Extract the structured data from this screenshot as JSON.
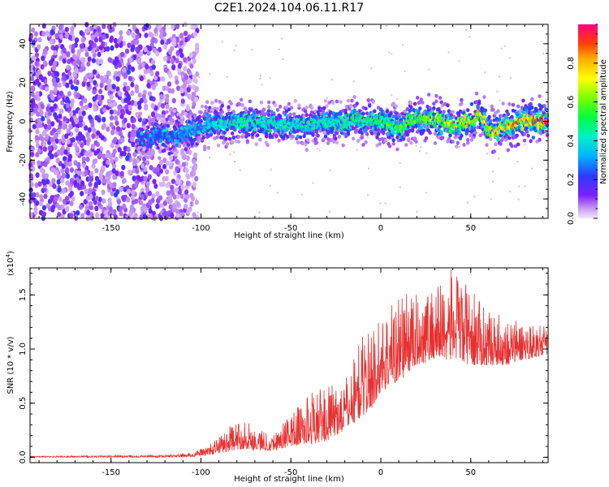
{
  "title": "C2E1.2024.104.06.11.R17",
  "chart_data": [
    {
      "type": "heatmap",
      "xlabel": "Height of straight line (km)",
      "ylabel": "Frequency (Hz)",
      "xlim": [
        -195,
        93
      ],
      "ylim": [
        -50,
        50
      ],
      "x_ticks": [
        -150,
        -100,
        -50,
        0,
        50
      ],
      "y_ticks": [
        -40,
        -20,
        0,
        20,
        40
      ],
      "colorbar": {
        "label": "Normalized spectral amplitude",
        "range": [
          0,
          1
        ],
        "ticks": [
          "0.0",
          "0.2",
          "0.4",
          "0.6",
          "0.8"
        ]
      },
      "description_points": {
        "noise_region_x": [
          -195,
          -110
        ],
        "signal_center_freq_hz": [
          [
            -130,
            -8
          ],
          [
            -110,
            -7
          ],
          [
            -100,
            -3
          ],
          [
            -80,
            0
          ],
          [
            -60,
            -1
          ],
          [
            -40,
            -2
          ],
          [
            -20,
            -1
          ],
          [
            -10,
            1
          ],
          [
            0,
            0
          ],
          [
            10,
            -3
          ],
          [
            20,
            2
          ],
          [
            30,
            1
          ],
          [
            40,
            -2
          ],
          [
            50,
            0
          ],
          [
            55,
            3
          ],
          [
            60,
            -3
          ],
          [
            65,
            -5
          ],
          [
            70,
            -2
          ],
          [
            80,
            0
          ],
          [
            90,
            0
          ]
        ],
        "signal_peak_amplitude": [
          [
            -130,
            0.25
          ],
          [
            -100,
            0.35
          ],
          [
            -80,
            0.5
          ],
          [
            -40,
            0.45
          ],
          [
            0,
            0.55
          ],
          [
            30,
            0.7
          ],
          [
            50,
            0.8
          ],
          [
            70,
            0.85
          ],
          [
            90,
            0.95
          ]
        ]
      }
    },
    {
      "type": "line",
      "xlabel": "Height of straight line (km)",
      "ylabel": "SNR (10 * v/v)",
      "y_multiplier": "(x10",
      "y_multiplier_exp": "4",
      "y_multiplier_close": ")",
      "xlim": [
        -195,
        93
      ],
      "ylim": [
        -0.05,
        1.75
      ],
      "x_ticks": [
        -150,
        -100,
        -50,
        0,
        50
      ],
      "y_ticks": [
        0.0,
        0.5,
        1.0,
        1.5
      ],
      "y_tick_labels": [
        "0.0",
        "0.5",
        "1.0",
        "1.5"
      ],
      "color": "#e83030",
      "envelope": [
        [
          -195,
          0.0,
          0.01
        ],
        [
          -120,
          0.0,
          0.02
        ],
        [
          -105,
          0.005,
          0.04
        ],
        [
          -95,
          0.02,
          0.12
        ],
        [
          -85,
          0.05,
          0.28
        ],
        [
          -75,
          0.08,
          0.35
        ],
        [
          -70,
          0.06,
          0.28
        ],
        [
          -60,
          0.06,
          0.22
        ],
        [
          -50,
          0.1,
          0.4
        ],
        [
          -40,
          0.12,
          0.6
        ],
        [
          -30,
          0.15,
          0.65
        ],
        [
          -20,
          0.25,
          0.7
        ],
        [
          -12,
          0.35,
          1.1
        ],
        [
          -5,
          0.45,
          1.2
        ],
        [
          0,
          0.6,
          1.3
        ],
        [
          10,
          0.7,
          1.55
        ],
        [
          20,
          0.85,
          1.5
        ],
        [
          30,
          0.9,
          1.6
        ],
        [
          40,
          0.9,
          1.75
        ],
        [
          50,
          0.85,
          1.55
        ],
        [
          60,
          0.85,
          1.35
        ],
        [
          70,
          0.85,
          1.3
        ],
        [
          80,
          0.9,
          1.25
        ],
        [
          93,
          0.95,
          1.2
        ]
      ]
    }
  ]
}
